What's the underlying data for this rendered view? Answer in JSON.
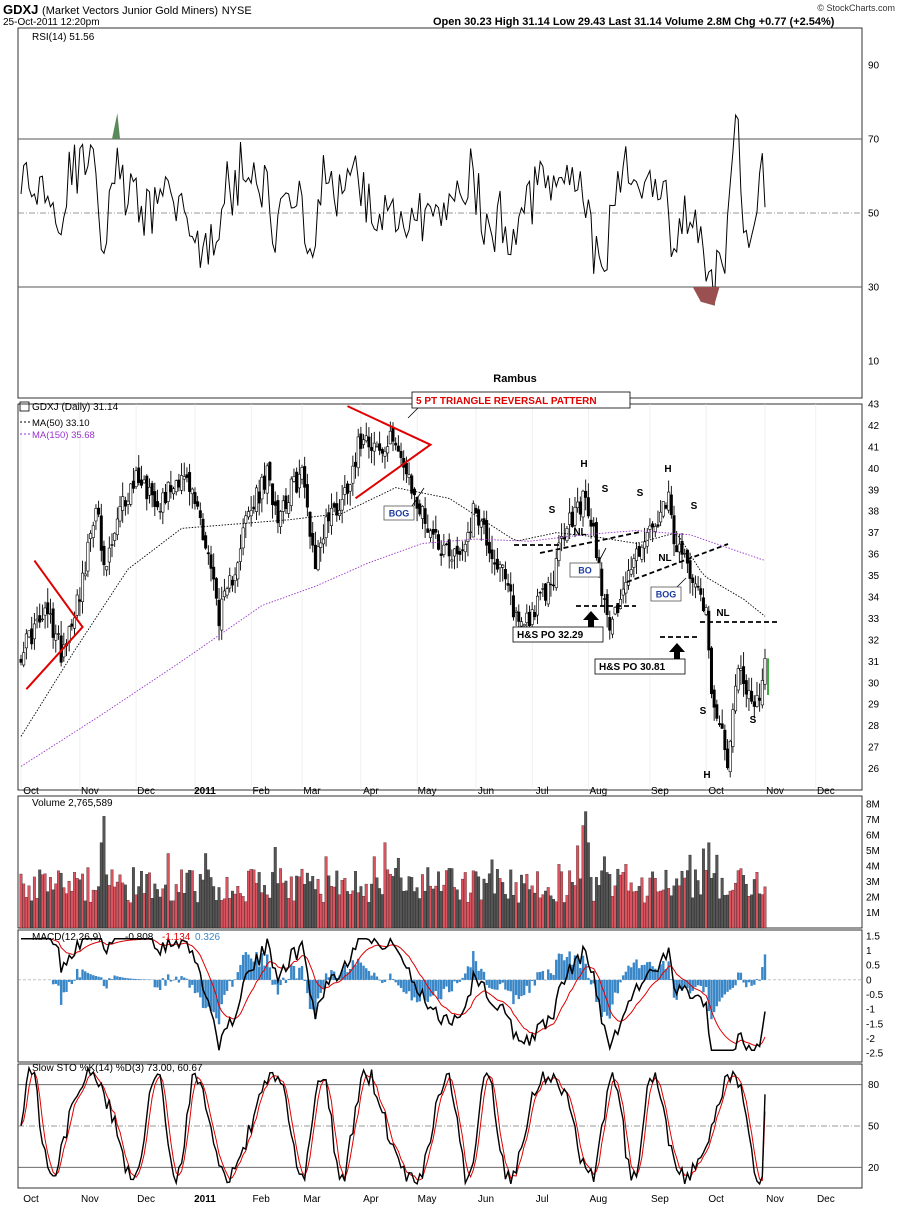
{
  "header": {
    "symbol": "GDXJ",
    "name": "(Market Vectors Junior Gold Miners)",
    "exchange": "NYSE",
    "date": "25-Oct-2011 12:20pm",
    "quote": "Open 30.23  High 31.14  Low 29.43  Last 31.14  Volume 2.8M  Chg +0.77 (+2.54%)",
    "source": "© StockCharts.com",
    "author": "Rambus"
  },
  "colors": {
    "up": "#d9545f",
    "down": "#555555",
    "ma150": "#9933cc",
    "annotation": "#e00000",
    "macd_hist": "#3a87c8",
    "rsi_high": "#5a8a5a",
    "rsi_low": "#9a5050"
  },
  "months": {
    "labels": [
      "Oct",
      "Nov",
      "Dec",
      "2011",
      "Feb",
      "Mar",
      "Apr",
      "May",
      "Jun",
      "Jul",
      "Aug",
      "Sep",
      "Oct",
      "Nov",
      "Dec"
    ],
    "trading_day_index": [
      0,
      22,
      43,
      65,
      86,
      105,
      127,
      148,
      170,
      191,
      212,
      235,
      256,
      278,
      297
    ]
  },
  "chart_data": [
    {
      "type": "line",
      "title": "RSI(14) 51.56",
      "series": [
        {
          "name": "RSI(14)",
          "values": []
        }
      ],
      "ylim": [
        0,
        100
      ],
      "yticks": [
        10,
        30,
        50,
        70,
        90
      ],
      "overbought": 70,
      "oversold": 30,
      "midline": 50
    },
    {
      "type": "candlestick",
      "title": "GDXJ (Daily) 31.14",
      "legend": [
        "MA(50) 33.10",
        "MA(150) 35.68"
      ],
      "ylim": [
        25,
        43
      ],
      "yticks": [
        26,
        27,
        28,
        29,
        30,
        31,
        32,
        33,
        34,
        35,
        36,
        37,
        38,
        39,
        40,
        41,
        42,
        43
      ],
      "keypoints": [
        [
          0,
          31.5
        ],
        [
          5,
          32.5
        ],
        [
          10,
          33.2
        ],
        [
          15,
          31.5
        ],
        [
          18,
          32.6
        ],
        [
          24,
          35.2
        ],
        [
          28,
          38.6
        ],
        [
          31,
          35.0
        ],
        [
          38,
          38.3
        ],
        [
          44,
          39.8
        ],
        [
          46,
          39.2
        ],
        [
          52,
          38.5
        ],
        [
          60,
          39.8
        ],
        [
          66,
          38.2
        ],
        [
          70,
          36.0
        ],
        [
          74,
          33.2
        ],
        [
          77,
          34.0
        ],
        [
          84,
          37.5
        ],
        [
          92,
          39.6
        ],
        [
          96,
          38.0
        ],
        [
          105,
          39.8
        ],
        [
          110,
          35.6
        ],
        [
          114,
          37.6
        ],
        [
          120,
          38.5
        ],
        [
          128,
          41.8
        ],
        [
          135,
          40.6
        ],
        [
          140,
          41.6
        ],
        [
          144,
          39.5
        ],
        [
          150,
          37.8
        ],
        [
          157,
          36.4
        ],
        [
          164,
          36.0
        ],
        [
          170,
          38.2
        ],
        [
          176,
          36.0
        ],
        [
          180,
          35.0
        ],
        [
          186,
          32.8
        ],
        [
          192,
          33.4
        ],
        [
          198,
          34.6
        ],
        [
          203,
          37.0
        ],
        [
          210,
          38.6
        ],
        [
          214,
          37.0
        ],
        [
          218,
          33.8
        ],
        [
          221,
          32.5
        ],
        [
          224,
          34.3
        ],
        [
          228,
          35.4
        ],
        [
          232,
          36.6
        ],
        [
          237,
          37.2
        ],
        [
          242,
          38.4
        ],
        [
          245,
          36.0
        ],
        [
          248,
          35.8
        ],
        [
          252,
          35.0
        ],
        [
          256,
          33.4
        ],
        [
          258,
          29.5
        ],
        [
          261,
          28.5
        ],
        [
          263,
          27.0
        ],
        [
          264,
          25.5
        ],
        [
          266,
          28.6
        ],
        [
          268,
          30.8
        ],
        [
          270,
          30.3
        ],
        [
          272,
          29.5
        ],
        [
          274,
          28.6
        ],
        [
          276,
          29.5
        ],
        [
          278,
          31.1
        ]
      ],
      "ma50": [
        [
          0,
          27.5
        ],
        [
          20,
          31.5
        ],
        [
          40,
          35.3
        ],
        [
          60,
          37.2
        ],
        [
          80,
          37.4
        ],
        [
          100,
          37.6
        ],
        [
          120,
          37.9
        ],
        [
          140,
          39.1
        ],
        [
          160,
          38.6
        ],
        [
          175,
          37.4
        ],
        [
          185,
          36.6
        ],
        [
          200,
          37.0
        ],
        [
          215,
          36.8
        ],
        [
          230,
          36.5
        ],
        [
          245,
          37.0
        ],
        [
          255,
          35.0
        ],
        [
          270,
          33.9
        ],
        [
          278,
          33.1
        ]
      ],
      "ma150": [
        [
          0,
          26.1
        ],
        [
          30,
          28.5
        ],
        [
          60,
          31.0
        ],
        [
          90,
          33.6
        ],
        [
          110,
          34.5
        ],
        [
          130,
          35.6
        ],
        [
          150,
          36.5
        ],
        [
          170,
          36.7
        ],
        [
          190,
          36.6
        ],
        [
          210,
          36.9
        ],
        [
          230,
          37.1
        ],
        [
          250,
          36.9
        ],
        [
          278,
          35.7
        ]
      ]
    },
    {
      "type": "bar",
      "title": "Volume 2,765,589",
      "ylim": [
        0,
        8500000
      ],
      "yticks": [
        1000000,
        2000000,
        3000000,
        4000000,
        5000000,
        6000000,
        7000000,
        8000000
      ],
      "ytick_labels": [
        "1M",
        "2M",
        "3M",
        "4M",
        "5M",
        "6M",
        "7M",
        "8M"
      ],
      "spikes": [
        [
          30,
          5.5
        ],
        [
          31,
          7.2
        ],
        [
          55,
          4.8
        ],
        [
          69,
          4.8
        ],
        [
          95,
          5.2
        ],
        [
          114,
          4.6
        ],
        [
          132,
          4.6
        ],
        [
          136,
          5.5
        ],
        [
          141,
          4.5
        ],
        [
          176,
          4.4
        ],
        [
          201,
          4.1
        ],
        [
          208,
          5.3
        ],
        [
          210,
          6.6
        ],
        [
          211,
          7.5
        ],
        [
          212,
          5.5
        ],
        [
          218,
          4.6
        ],
        [
          226,
          4.1
        ],
        [
          250,
          4.7
        ],
        [
          255,
          5.1
        ],
        [
          257,
          5.5
        ],
        [
          260,
          4.7
        ]
      ],
      "last": 2765589
    },
    {
      "type": "line",
      "title": "MACD(12,26,9) -0.808, -1.134, 0.326",
      "legend": [
        "MACD(12,26,9)",
        "-0.808",
        "-1.134",
        "0.326"
      ],
      "ylim": [
        -2.8,
        1.7
      ],
      "yticks": [
        1.5,
        1.0,
        0.5,
        0.0,
        -0.5,
        -1.0,
        -1.5,
        -2.0,
        -2.5
      ]
    },
    {
      "type": "line",
      "title": "Slow STO %K(14) %D(3) 73.00, 60.67",
      "legend": [
        "Slow STO %K(14) %D(3)",
        "73.00",
        "60.67"
      ],
      "ylim": [
        5,
        95
      ],
      "yticks": [
        20,
        50,
        80
      ]
    }
  ],
  "annotations": {
    "triangle_title": "5 PT TRIANGLE REVERSAL PATTERN",
    "bog": "BOG",
    "bo": "BO",
    "nl": "NL",
    "h": "H",
    "s": "S",
    "hs_po_1": "H&S PO 32.29",
    "hs_po_2": "H&S PO 30.81"
  }
}
